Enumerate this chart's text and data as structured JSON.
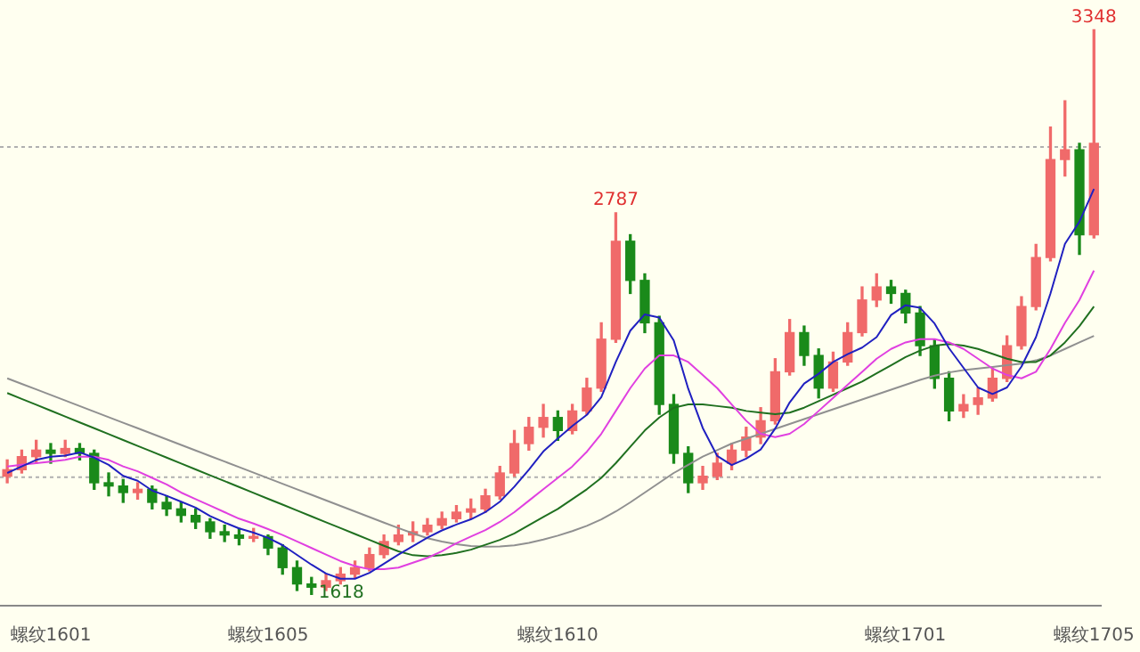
{
  "chart_data": {
    "type": "candlestick",
    "categories": [
      null,
      null,
      null,
      "螺纹1601",
      null,
      null,
      null,
      null,
      null,
      null,
      null,
      null,
      null,
      null,
      null,
      null,
      null,
      null,
      "螺纹1605",
      null,
      null,
      null,
      null,
      null,
      null,
      null,
      null,
      null,
      null,
      null,
      null,
      null,
      null,
      null,
      null,
      null,
      null,
      null,
      "螺纹1610",
      null,
      null,
      null,
      null,
      null,
      null,
      null,
      null,
      null,
      null,
      null,
      null,
      null,
      null,
      null,
      null,
      null,
      null,
      null,
      null,
      null,
      null,
      null,
      "螺纹1701",
      null,
      null,
      null,
      null,
      null,
      null,
      null,
      null,
      null,
      null,
      null,
      null,
      "螺纹1705"
    ],
    "ohlc": [
      [
        1980,
        2030,
        1960,
        2000
      ],
      [
        2000,
        2060,
        1990,
        2040
      ],
      [
        2040,
        2090,
        2020,
        2060
      ],
      [
        2060,
        2080,
        2020,
        2050
      ],
      [
        2050,
        2090,
        2040,
        2065
      ],
      [
        2065,
        2080,
        2030,
        2050
      ],
      [
        2050,
        2060,
        1940,
        1960
      ],
      [
        1960,
        1990,
        1920,
        1950
      ],
      [
        1950,
        1970,
        1900,
        1930
      ],
      [
        1930,
        1960,
        1910,
        1940
      ],
      [
        1940,
        1950,
        1880,
        1900
      ],
      [
        1900,
        1920,
        1860,
        1880
      ],
      [
        1880,
        1900,
        1840,
        1860
      ],
      [
        1860,
        1880,
        1820,
        1840
      ],
      [
        1840,
        1850,
        1790,
        1810
      ],
      [
        1810,
        1830,
        1780,
        1800
      ],
      [
        1800,
        1820,
        1770,
        1790
      ],
      [
        1790,
        1820,
        1780,
        1795
      ],
      [
        1795,
        1800,
        1740,
        1760
      ],
      [
        1760,
        1770,
        1680,
        1700
      ],
      [
        1700,
        1720,
        1630,
        1650
      ],
      [
        1650,
        1670,
        1618,
        1640
      ],
      [
        1640,
        1680,
        1630,
        1660
      ],
      [
        1660,
        1700,
        1650,
        1680
      ],
      [
        1680,
        1720,
        1670,
        1700
      ],
      [
        1700,
        1760,
        1690,
        1740
      ],
      [
        1740,
        1800,
        1730,
        1780
      ],
      [
        1780,
        1830,
        1770,
        1800
      ],
      [
        1800,
        1840,
        1780,
        1810
      ],
      [
        1810,
        1850,
        1800,
        1830
      ],
      [
        1830,
        1870,
        1820,
        1850
      ],
      [
        1850,
        1890,
        1840,
        1870
      ],
      [
        1870,
        1910,
        1850,
        1880
      ],
      [
        1880,
        1940,
        1870,
        1920
      ],
      [
        1920,
        2010,
        1910,
        1990
      ],
      [
        1990,
        2120,
        1980,
        2080
      ],
      [
        2080,
        2160,
        2060,
        2130
      ],
      [
        2130,
        2200,
        2100,
        2160
      ],
      [
        2160,
        2180,
        2090,
        2120
      ],
      [
        2120,
        2200,
        2110,
        2180
      ],
      [
        2180,
        2280,
        2170,
        2250
      ],
      [
        2250,
        2450,
        2240,
        2400
      ],
      [
        2400,
        2787,
        2390,
        2700
      ],
      [
        2700,
        2720,
        2540,
        2580
      ],
      [
        2580,
        2600,
        2420,
        2450
      ],
      [
        2450,
        2470,
        2170,
        2200
      ],
      [
        2200,
        2230,
        2020,
        2050
      ],
      [
        2050,
        2070,
        1930,
        1960
      ],
      [
        1960,
        2010,
        1940,
        1980
      ],
      [
        1980,
        2050,
        1970,
        2020
      ],
      [
        2020,
        2080,
        2000,
        2060
      ],
      [
        2060,
        2130,
        2040,
        2100
      ],
      [
        2100,
        2190,
        2080,
        2150
      ],
      [
        2150,
        2340,
        2140,
        2300
      ],
      [
        2300,
        2460,
        2290,
        2420
      ],
      [
        2420,
        2440,
        2320,
        2350
      ],
      [
        2350,
        2370,
        2220,
        2250
      ],
      [
        2250,
        2360,
        2240,
        2330
      ],
      [
        2330,
        2450,
        2320,
        2420
      ],
      [
        2420,
        2560,
        2410,
        2520
      ],
      [
        2520,
        2600,
        2500,
        2560
      ],
      [
        2560,
        2580,
        2510,
        2540
      ],
      [
        2540,
        2550,
        2450,
        2480
      ],
      [
        2480,
        2500,
        2350,
        2380
      ],
      [
        2380,
        2400,
        2250,
        2280
      ],
      [
        2280,
        2300,
        2150,
        2180
      ],
      [
        2180,
        2230,
        2160,
        2200
      ],
      [
        2200,
        2250,
        2170,
        2220
      ],
      [
        2220,
        2310,
        2210,
        2280
      ],
      [
        2280,
        2410,
        2270,
        2380
      ],
      [
        2380,
        2530,
        2370,
        2500
      ],
      [
        2500,
        2690,
        2490,
        2650
      ],
      [
        2650,
        3050,
        2640,
        2950
      ],
      [
        2950,
        3130,
        2900,
        2980
      ],
      [
        2980,
        3000,
        2660,
        2720
      ],
      [
        2720,
        3348,
        2710,
        3000
      ]
    ],
    "series": [
      {
        "type": "line",
        "color": "#2020c0",
        "values": [
          1990,
          2010,
          2030,
          2040,
          2043,
          2053,
          2037,
          2015,
          1981,
          1966,
          1936,
          1920,
          1902,
          1884,
          1858,
          1838,
          1820,
          1807,
          1791,
          1769,
          1739,
          1709,
          1682,
          1666,
          1666,
          1684,
          1712,
          1740,
          1766,
          1792,
          1814,
          1832,
          1848,
          1870,
          1902,
          1948,
          2000,
          2056,
          2096,
          2134,
          2168,
          2222,
          2330,
          2426,
          2476,
          2466,
          2396,
          2248,
          2128,
          2042,
          2014,
          2034,
          2062,
          2126,
          2206,
          2264,
          2294,
          2330,
          2354,
          2374,
          2406,
          2474,
          2504,
          2496,
          2448,
          2372,
          2312,
          2252,
          2232,
          2252,
          2316,
          2406,
          2540,
          2692,
          2760,
          2860
        ]
      },
      {
        "type": "line",
        "color": "#e040e0",
        "values": [
          2010,
          2015,
          2020,
          2025,
          2030,
          2040,
          2040,
          2030,
          2010,
          1995,
          1975,
          1955,
          1930,
          1910,
          1890,
          1870,
          1850,
          1835,
          1818,
          1800,
          1780,
          1760,
          1740,
          1720,
          1705,
          1695,
          1695,
          1700,
          1715,
          1730,
          1750,
          1775,
          1795,
          1815,
          1840,
          1870,
          1905,
          1940,
          1975,
          2010,
          2055,
          2110,
          2180,
          2250,
          2310,
          2350,
          2350,
          2330,
          2290,
          2250,
          2200,
          2150,
          2110,
          2100,
          2110,
          2140,
          2180,
          2220,
          2260,
          2300,
          2340,
          2370,
          2390,
          2400,
          2400,
          2390,
          2370,
          2340,
          2310,
          2290,
          2280,
          2300,
          2370,
          2450,
          2520,
          2610
        ]
      },
      {
        "type": "line",
        "color": "#207020",
        "values": [
          2235,
          2217,
          2199,
          2181,
          2163,
          2145,
          2127,
          2109,
          2091,
          2073,
          2055,
          2037,
          2019,
          2001,
          1983,
          1965,
          1947,
          1929,
          1911,
          1893,
          1875,
          1857,
          1839,
          1821,
          1803,
          1785,
          1767,
          1750,
          1738,
          1735,
          1738,
          1745,
          1755,
          1770,
          1785,
          1805,
          1830,
          1855,
          1880,
          1910,
          1940,
          1975,
          2020,
          2070,
          2120,
          2160,
          2190,
          2200,
          2200,
          2195,
          2190,
          2180,
          2175,
          2170,
          2175,
          2190,
          2210,
          2230,
          2250,
          2270,
          2295,
          2320,
          2345,
          2365,
          2380,
          2385,
          2380,
          2370,
          2355,
          2340,
          2330,
          2330,
          2350,
          2390,
          2440,
          2500
        ]
      },
      {
        "type": "line",
        "color": "#909090",
        "values": [
          2280,
          2263,
          2246,
          2229,
          2212,
          2195,
          2178,
          2161,
          2144,
          2127,
          2110,
          2093,
          2076,
          2059,
          2042,
          2025,
          2008,
          1991,
          1974,
          1957,
          1940,
          1923,
          1906,
          1889,
          1872,
          1855,
          1838,
          1821,
          1805,
          1790,
          1780,
          1772,
          1766,
          1764,
          1765,
          1768,
          1776,
          1786,
          1798,
          1812,
          1828,
          1848,
          1872,
          1900,
          1930,
          1960,
          1990,
          2015,
          2040,
          2060,
          2080,
          2095,
          2110,
          2125,
          2140,
          2155,
          2170,
          2185,
          2200,
          2215,
          2230,
          2245,
          2260,
          2275,
          2288,
          2298,
          2305,
          2310,
          2315,
          2320,
          2325,
          2335,
          2350,
          2370,
          2390,
          2410
        ]
      }
    ],
    "ref_lines": [
      {
        "axis": "y",
        "value": 2989,
        "color": "#b0b0b0",
        "line_style": "dotted"
      },
      {
        "axis": "y",
        "value": 1977,
        "color": "#b0b0b0",
        "line_style": "dotted"
      }
    ],
    "value_labels": [
      null,
      null,
      null,
      null,
      null,
      null,
      null,
      null,
      null,
      null,
      null,
      null,
      null,
      null,
      null,
      null,
      null,
      null,
      null,
      null,
      null,
      "1618",
      null,
      null,
      null,
      null,
      null,
      null,
      null,
      null,
      null,
      null,
      null,
      null,
      null,
      null,
      null,
      null,
      null,
      null,
      null,
      null,
      "2787",
      null,
      null,
      null,
      null,
      null,
      null,
      null,
      null,
      null,
      null,
      null,
      null,
      null,
      null,
      null,
      null,
      null,
      null,
      null,
      null,
      null,
      null,
      null,
      null,
      null,
      null,
      null,
      null,
      null,
      null,
      null,
      null,
      "3348"
    ]
  }
}
